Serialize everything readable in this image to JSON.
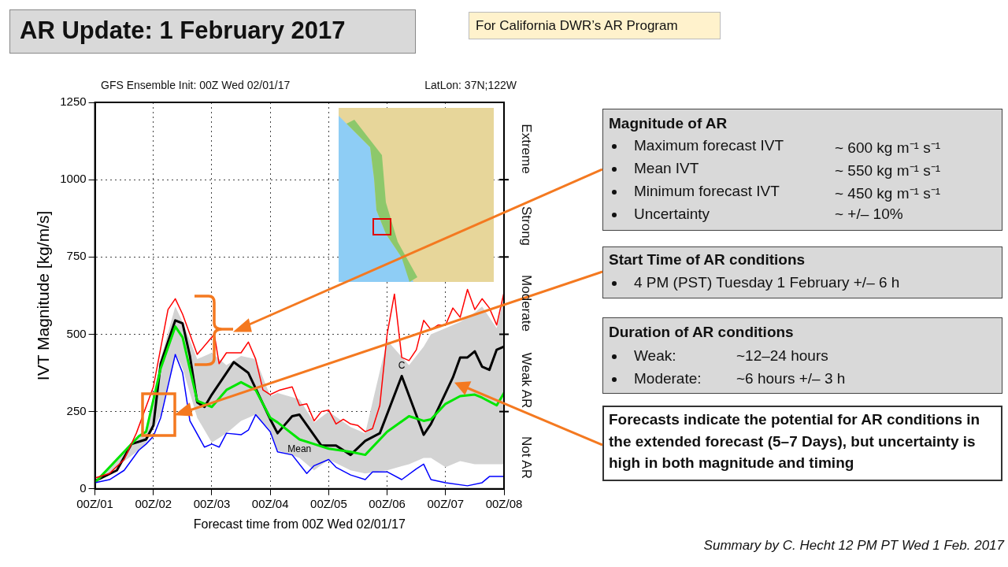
{
  "chart_data": {
    "type": "line",
    "title": "AR Update: 1 February 2017",
    "xlabel": "Forecast time from 00Z Wed 02/01/17",
    "ylabel": "IVT Magnitude [kg/m/s]",
    "xlim": [
      "2017-02-01T00:00",
      "2017-02-08T00:00"
    ],
    "xticks": [
      {
        "value": "2017-02-01T00:00",
        "label": "00Z/01"
      },
      {
        "value": "2017-02-02T00:00",
        "label": "00Z/02"
      },
      {
        "value": "2017-02-03T00:00",
        "label": "00Z/03"
      },
      {
        "value": "2017-02-04T00:00",
        "label": "00Z/04"
      },
      {
        "value": "2017-02-05T00:00",
        "label": "00Z/05"
      },
      {
        "value": "2017-02-06T00:00",
        "label": "00Z/06"
      },
      {
        "value": "2017-02-07T00:00",
        "label": "00Z/07"
      },
      {
        "value": "2017-02-08T00:00",
        "label": "00Z/08"
      }
    ],
    "ylim": [
      0,
      1250
    ],
    "yticks": [
      0,
      250,
      500,
      750,
      1000,
      1250
    ],
    "grid": true,
    "legend": false,
    "marker": "none",
    "series": [
      {
        "color": "#ff0000",
        "x": [
          "2017-02-01T00:00",
          "2017-02-01T06:00",
          "2017-02-01T12:00",
          "2017-02-01T17:00",
          "2017-02-02T00:00",
          "2017-02-02T06:00",
          "2017-02-02T09:00",
          "2017-02-02T12:00",
          "2017-02-02T18:00",
          "2017-02-03T01:00",
          "2017-02-03T03:00",
          "2017-02-03T06:00",
          "2017-02-03T12:00",
          "2017-02-03T15:00",
          "2017-02-03T18:00",
          "2017-02-03T21:00",
          "2017-02-04T00:00",
          "2017-02-04T04:00",
          "2017-02-04T09:00",
          "2017-02-04T12:00",
          "2017-02-04T15:00",
          "2017-02-04T18:00",
          "2017-02-04T21:00",
          "2017-02-05T00:00",
          "2017-02-05T03:00",
          "2017-02-05T06:00",
          "2017-02-05T09:00",
          "2017-02-05T12:00",
          "2017-02-05T15:00",
          "2017-02-05T18:00",
          "2017-02-05T21:00",
          "2017-02-06T00:00",
          "2017-02-06T03:00",
          "2017-02-06T06:00",
          "2017-02-06T09:00",
          "2017-02-06T12:00",
          "2017-02-06T15:00",
          "2017-02-06T18:00",
          "2017-02-06T21:00",
          "2017-02-07T00:00",
          "2017-02-07T03:00",
          "2017-02-07T06:00",
          "2017-02-07T09:00",
          "2017-02-07T12:00",
          "2017-02-07T15:00",
          "2017-02-07T18:00",
          "2017-02-07T21:00",
          "2017-02-08T00:00"
        ],
        "values": [
          35,
          50,
          95,
          180,
          330,
          580,
          615,
          565,
          435,
          500,
          405,
          440,
          440,
          475,
          420,
          320,
          305,
          320,
          330,
          270,
          275,
          220,
          250,
          255,
          210,
          225,
          210,
          205,
          185,
          195,
          270,
          500,
          630,
          425,
          415,
          450,
          545,
          515,
          530,
          530,
          585,
          555,
          645,
          580,
          615,
          585,
          530,
          635
        ]
      },
      {
        "color": "#0000ff",
        "x": [
          "2017-02-01T00:00",
          "2017-02-01T06:00",
          "2017-02-01T12:00",
          "2017-02-01T18:00",
          "2017-02-01T21:00",
          "2017-02-02T00:00",
          "2017-02-02T03:00",
          "2017-02-02T09:00",
          "2017-02-02T12:00",
          "2017-02-02T15:00",
          "2017-02-02T21:00",
          "2017-02-03T00:00",
          "2017-02-03T03:00",
          "2017-02-03T06:00",
          "2017-02-03T12:00",
          "2017-02-03T15:00",
          "2017-02-03T18:00",
          "2017-02-04T00:00",
          "2017-02-04T03:00",
          "2017-02-04T09:00",
          "2017-02-04T15:00",
          "2017-02-04T18:00",
          "2017-02-05T00:00",
          "2017-02-05T03:00",
          "2017-02-05T09:00",
          "2017-02-05T15:00",
          "2017-02-05T18:00",
          "2017-02-06T00:00",
          "2017-02-06T06:00",
          "2017-02-06T12:00",
          "2017-02-06T15:00",
          "2017-02-06T18:00",
          "2017-02-07T00:00",
          "2017-02-07T09:00",
          "2017-02-07T15:00",
          "2017-02-07T18:00",
          "2017-02-08T00:00"
        ],
        "values": [
          20,
          30,
          60,
          125,
          145,
          170,
          230,
          435,
          375,
          220,
          135,
          145,
          135,
          180,
          175,
          190,
          240,
          185,
          120,
          110,
          50,
          75,
          95,
          70,
          45,
          30,
          55,
          55,
          30,
          65,
          80,
          30,
          20,
          10,
          20,
          40,
          40
        ]
      },
      {
        "name": "Mean",
        "color": "#00e600",
        "x": [
          "2017-02-01T00:00",
          "2017-02-01T18:00",
          "2017-02-01T21:00",
          "2017-02-02T03:00",
          "2017-02-02T09:00",
          "2017-02-02T12:00",
          "2017-02-02T18:00",
          "2017-02-03T00:00",
          "2017-02-03T06:00",
          "2017-02-03T12:00",
          "2017-02-03T18:00",
          "2017-02-04T00:00",
          "2017-02-04T03:00",
          "2017-02-04T12:00",
          "2017-02-04T18:00",
          "2017-02-05T00:00",
          "2017-02-05T09:00",
          "2017-02-05T15:00",
          "2017-02-06T00:00",
          "2017-02-06T09:00",
          "2017-02-06T15:00",
          "2017-02-06T18:00",
          "2017-02-07T00:00",
          "2017-02-07T06:00",
          "2017-02-07T12:00",
          "2017-02-07T15:00",
          "2017-02-07T21:00",
          "2017-02-08T00:00"
        ],
        "values": [
          20,
          170,
          185,
          390,
          525,
          490,
          285,
          265,
          320,
          345,
          320,
          230,
          215,
          160,
          145,
          130,
          120,
          110,
          185,
          235,
          220,
          225,
          275,
          300,
          305,
          295,
          270,
          310
        ],
        "lower": [
          18,
          125,
          150,
          240,
          440,
          390,
          230,
          150,
          180,
          220,
          240,
          190,
          125,
          100,
          60,
          95,
          60,
          50,
          60,
          80,
          100,
          100,
          70,
          90,
          80,
          80,
          80,
          80
        ],
        "upper": [
          25,
          175,
          190,
          420,
          590,
          540,
          420,
          440,
          400,
          430,
          420,
          300,
          310,
          290,
          215,
          250,
          200,
          180,
          480,
          400,
          460,
          500,
          520,
          540,
          570,
          590,
          520,
          620
        ]
      },
      {
        "name": "C",
        "color": "#000000",
        "x": [
          "2017-02-01T00:00",
          "2017-02-01T09:00",
          "2017-02-01T15:00",
          "2017-02-01T21:00",
          "2017-02-02T00:00",
          "2017-02-02T03:00",
          "2017-02-02T09:00",
          "2017-02-02T12:00",
          "2017-02-02T15:00",
          "2017-02-02T18:00",
          "2017-02-02T21:00",
          "2017-02-03T00:00",
          "2017-02-03T09:00",
          "2017-02-03T15:00",
          "2017-02-04T00:00",
          "2017-02-04T03:00",
          "2017-02-04T09:00",
          "2017-02-04T12:00",
          "2017-02-04T21:00",
          "2017-02-05T03:00",
          "2017-02-05T09:00",
          "2017-02-05T15:00",
          "2017-02-05T21:00",
          "2017-02-06T06:00",
          "2017-02-06T15:00",
          "2017-02-06T18:00",
          "2017-02-07T03:00",
          "2017-02-07T06:00",
          "2017-02-07T09:00",
          "2017-02-07T12:00",
          "2017-02-07T15:00",
          "2017-02-07T18:00",
          "2017-02-07T21:00",
          "2017-02-08T00:00"
        ],
        "values": [
          25,
          60,
          145,
          160,
          205,
          405,
          545,
          535,
          430,
          280,
          265,
          305,
          410,
          375,
          225,
          180,
          235,
          240,
          140,
          140,
          110,
          155,
          180,
          365,
          175,
          210,
          360,
          425,
          425,
          445,
          395,
          385,
          450,
          460
        ]
      }
    ],
    "annotations": [
      "For California DWR’s AR Program",
      "GFS Ensemble Init: 00Z Wed 02/01/17",
      "LatLon: 37N;122W",
      "Magnitude of AR",
      "Maximum forecast IVT",
      "~ 600 kg m⁻¹ s⁻¹",
      "Mean IVT",
      "~ 550 kg m⁻¹ s⁻¹",
      "Minimum forecast IVT",
      "~ 450 kg m⁻¹ s⁻¹",
      "Uncertainty",
      "~ +/– 10%",
      "Start Time of AR conditions",
      "4 PM (PST) Tuesday 1 February +/– 6 h",
      "Duration of AR conditions",
      "Weak:",
      "~12–24 hours",
      "Moderate:",
      "~6 hours +/– 3 h",
      "Forecasts indicate the potential for AR conditions in the extended forecast (5–7 Days), but uncertainty is high in both magnitude and timing",
      "Summary by C. Hecht 12 PM PT Wed 1 Feb. 2017",
      "Not AR",
      "Weak AR",
      "Moderate",
      "Strong",
      "Extreme"
    ]
  }
}
